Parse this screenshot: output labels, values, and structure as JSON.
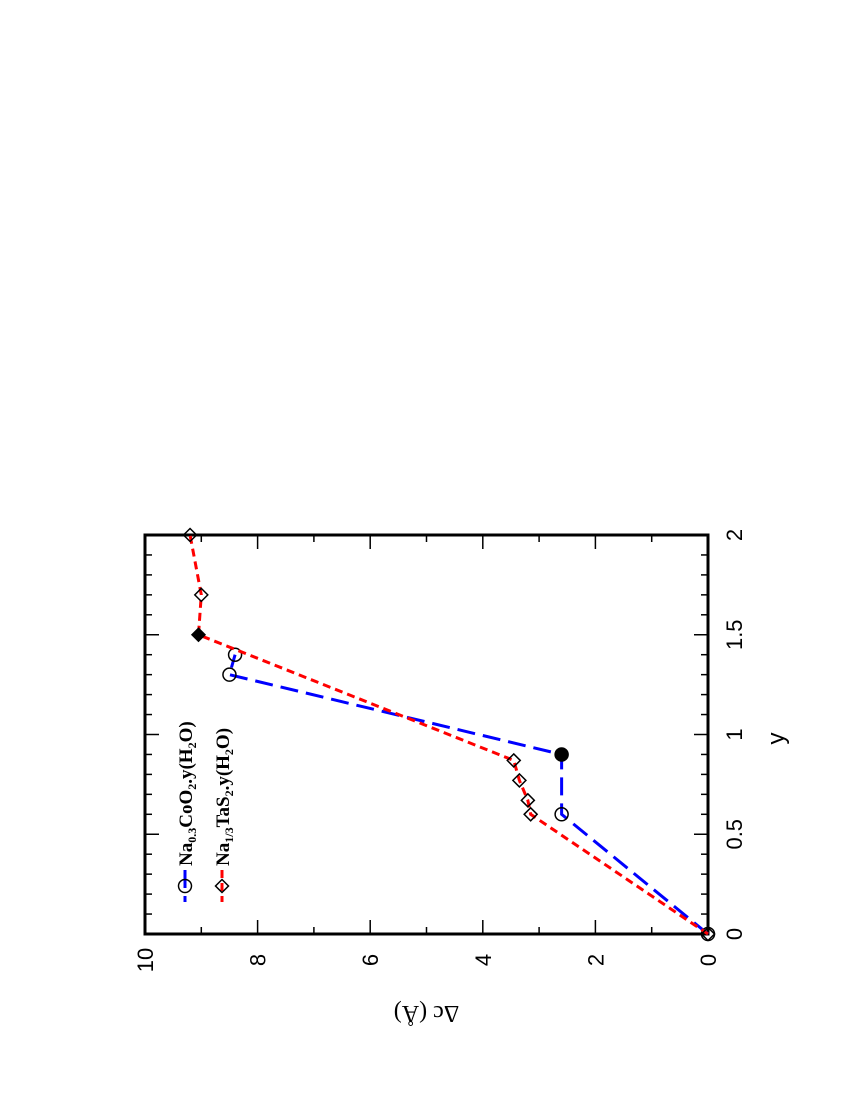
{
  "chart_data": {
    "type": "line",
    "orientation": "rotated-90-counterclockwise",
    "title": "",
    "xlabel": "y",
    "ylabel": "Δc (Å)",
    "xlim": [
      0,
      2
    ],
    "ylim": [
      0,
      10
    ],
    "x_ticks": [
      "0",
      "0.5",
      "1",
      "1.5",
      "2"
    ],
    "y_ticks": [
      "0",
      "2",
      "4",
      "6",
      "8",
      "10"
    ],
    "grid": false,
    "legend_position": "top-left",
    "series": [
      {
        "name": "Na0.3CoO2.y(H2O)",
        "legend": {
          "a": "Na",
          "b": "0.3",
          "c": "CoO",
          "d": "2",
          "e": ".y(H",
          "f": "2",
          "g": "O)"
        },
        "color": "#0000ff",
        "marker": "open-circle",
        "x": [
          0,
          0.6,
          0.9,
          1.3,
          1.4
        ],
        "y": [
          0,
          2.6,
          2.6,
          8.5,
          8.4
        ],
        "filled_point_indices": [
          2
        ]
      },
      {
        "name": "Na1/3TaS2.y(H2O)",
        "legend": {
          "a": "Na",
          "b": "1/3",
          "c": "TaS",
          "d": "2",
          "e": ".y(H",
          "f": "2",
          "g": "O)"
        },
        "color": "#ff0000",
        "marker": "open-diamond",
        "x": [
          0,
          0.6,
          0.67,
          0.77,
          0.87,
          1.5,
          1.7,
          2.0
        ],
        "y": [
          0,
          3.15,
          3.2,
          3.35,
          3.45,
          9.05,
          9.0,
          9.2
        ],
        "filled_point_indices": [
          5
        ]
      }
    ]
  }
}
